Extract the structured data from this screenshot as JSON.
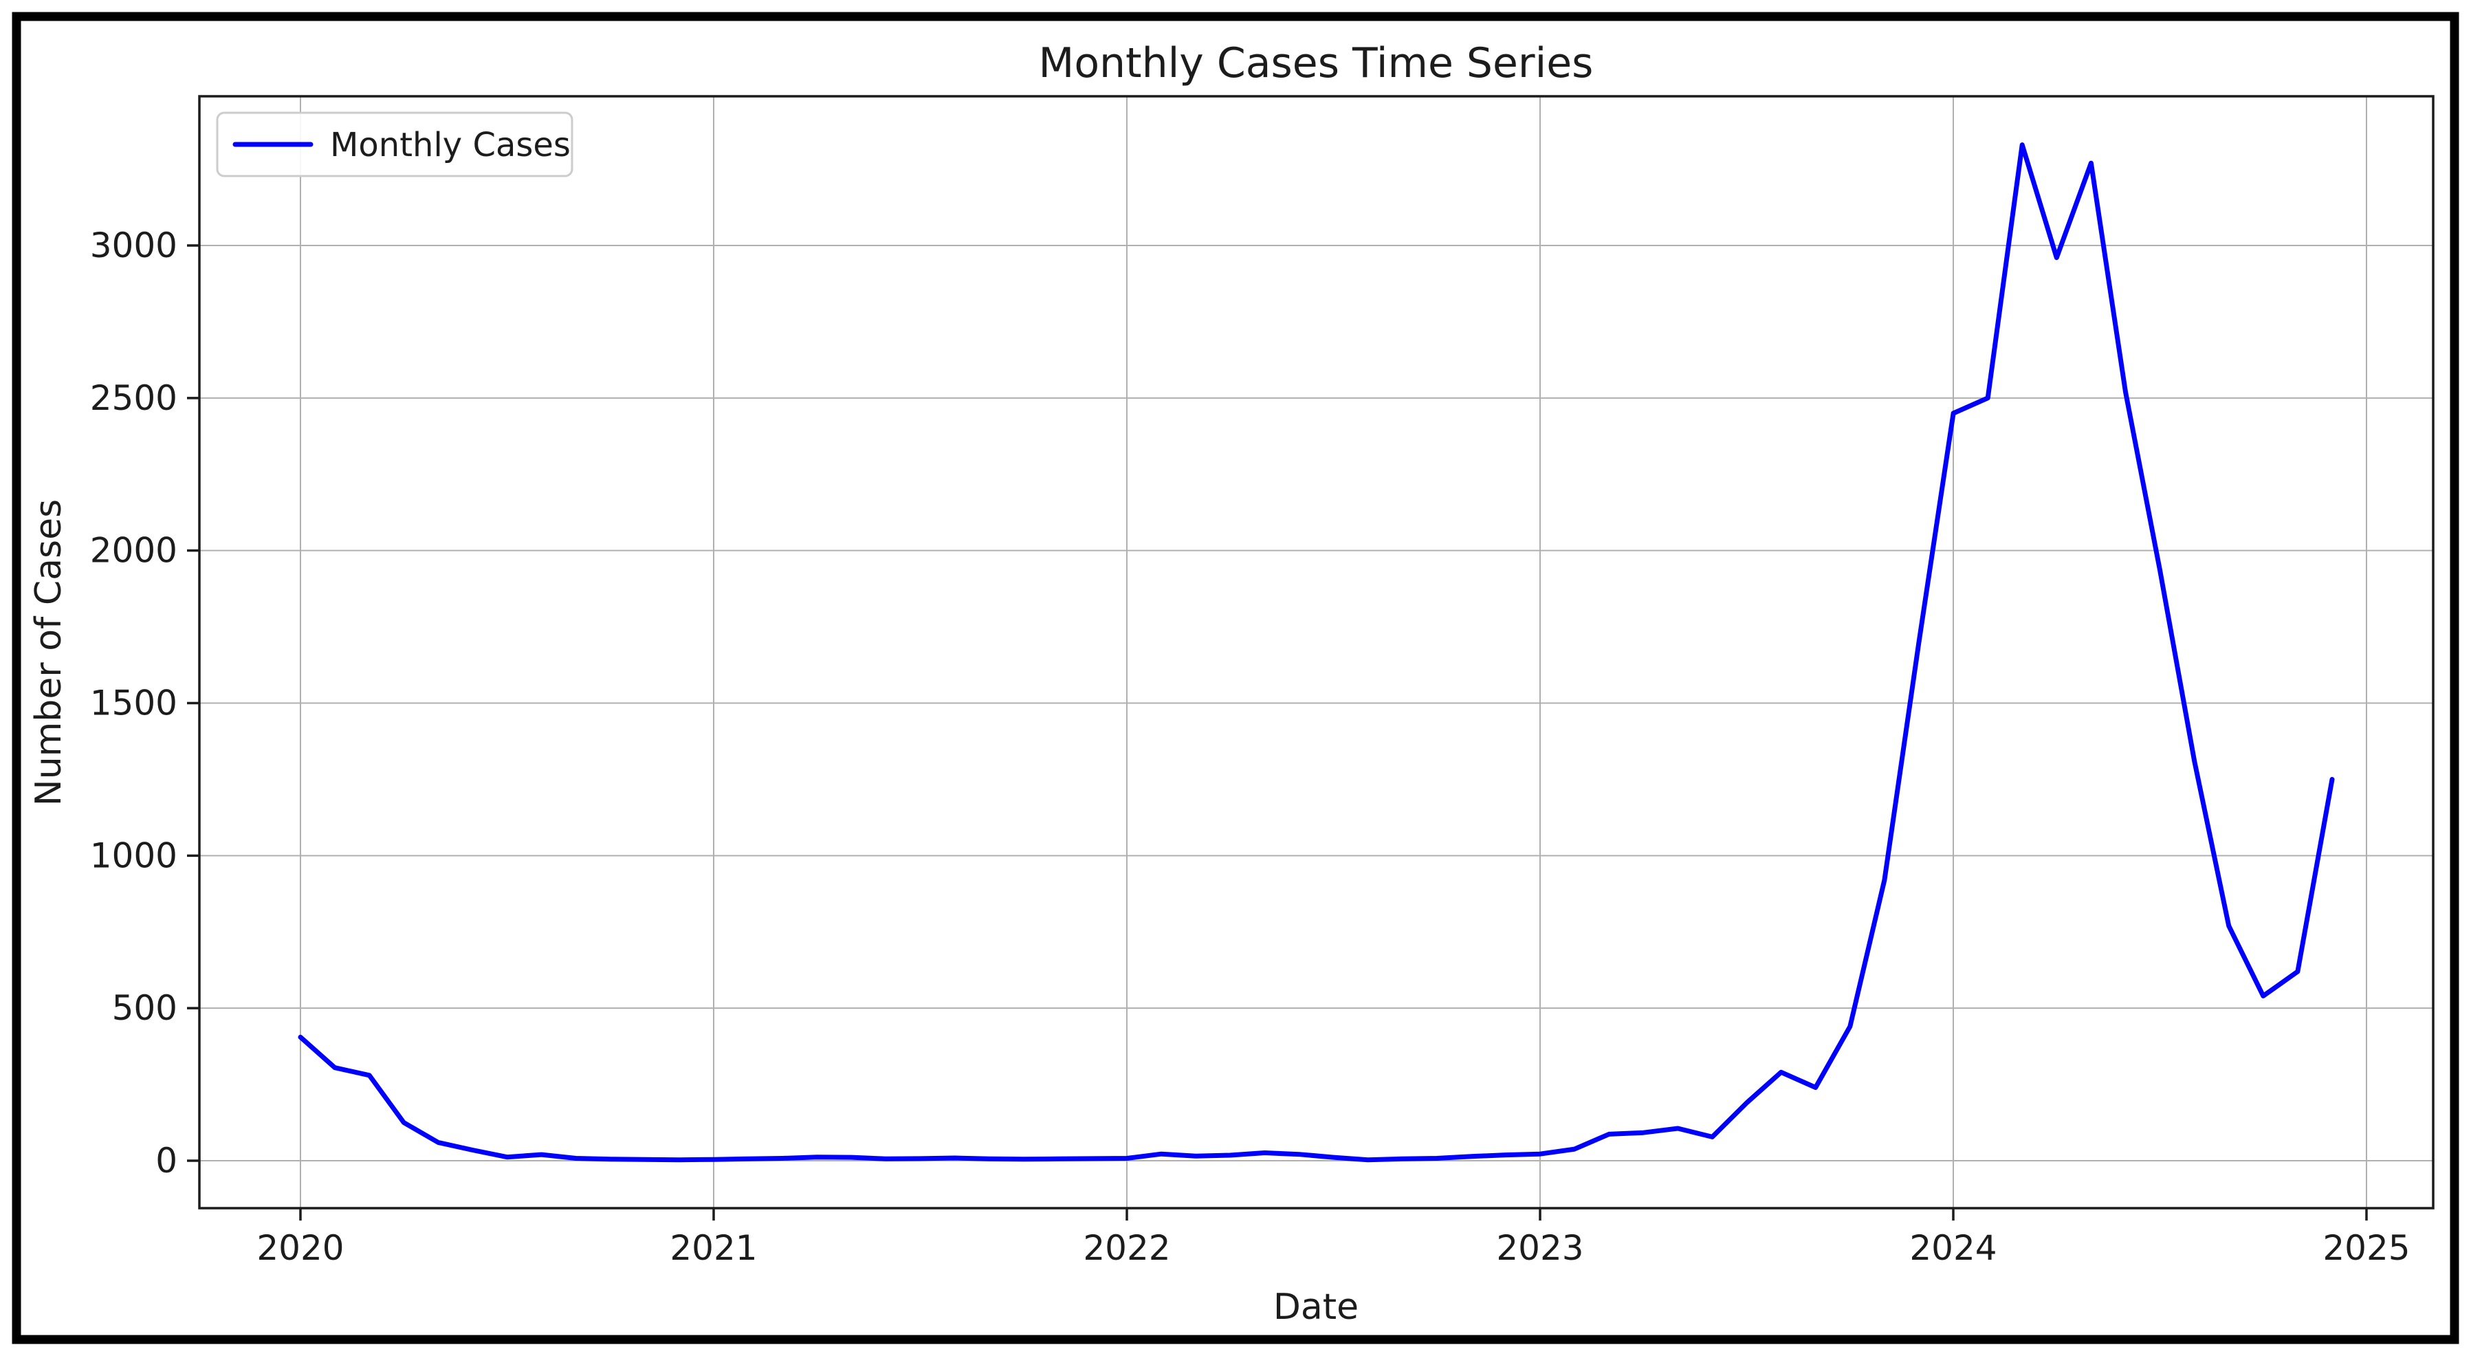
{
  "figure": {
    "title": "Monthly Cases Time Series",
    "x_axis_label": "Date",
    "y_axis_label": "Number of Cases",
    "legend_label": "Monthly Cases"
  },
  "chart_data": {
    "type": "line",
    "title": "Monthly Cases Time Series",
    "xlabel": "Date",
    "ylabel": "Number of Cases",
    "grid": true,
    "legend_position": "upper left",
    "line_color": "#0000ff",
    "grid_color": "#b0b0b0",
    "x_tick_labels": [
      "2020",
      "2021",
      "2022",
      "2023",
      "2024",
      "2025"
    ],
    "y_ticks": [
      0,
      500,
      1000,
      1500,
      2000,
      2500,
      3000
    ],
    "ylim": [
      -160,
      3490
    ],
    "xlim_years": [
      2019.76,
      2025.16
    ],
    "series": [
      {
        "name": "Monthly Cases",
        "frequency": "monthly",
        "x_start": "2020-01",
        "x_end": "2024-12",
        "months": [
          "2020-01",
          "2020-02",
          "2020-03",
          "2020-04",
          "2020-05",
          "2020-06",
          "2020-07",
          "2020-08",
          "2020-09",
          "2020-10",
          "2020-11",
          "2020-12",
          "2021-01",
          "2021-02",
          "2021-03",
          "2021-04",
          "2021-05",
          "2021-06",
          "2021-07",
          "2021-08",
          "2021-09",
          "2021-10",
          "2021-11",
          "2021-12",
          "2022-01",
          "2022-02",
          "2022-03",
          "2022-04",
          "2022-05",
          "2022-06",
          "2022-07",
          "2022-08",
          "2022-09",
          "2022-10",
          "2022-11",
          "2022-12",
          "2023-01",
          "2023-02",
          "2023-03",
          "2023-04",
          "2023-05",
          "2023-06",
          "2023-07",
          "2023-08",
          "2023-09",
          "2023-10",
          "2023-11",
          "2023-12",
          "2024-01",
          "2024-02",
          "2024-03",
          "2024-04",
          "2024-05",
          "2024-06",
          "2024-07",
          "2024-08",
          "2024-09",
          "2024-10",
          "2024-11",
          "2024-12"
        ],
        "values": [
          405,
          305,
          280,
          125,
          60,
          35,
          12,
          20,
          8,
          5,
          4,
          3,
          4,
          6,
          8,
          12,
          11,
          6,
          7,
          9,
          6,
          5,
          6,
          7,
          8,
          22,
          15,
          18,
          26,
          21,
          11,
          3,
          6,
          8,
          14,
          19,
          22,
          38,
          87,
          92,
          106,
          78,
          190,
          290,
          240,
          440,
          920,
          1700,
          2450,
          2500,
          3330,
          2960,
          3270,
          2520,
          1935,
          1310,
          770,
          540,
          620,
          1250
        ]
      }
    ]
  }
}
